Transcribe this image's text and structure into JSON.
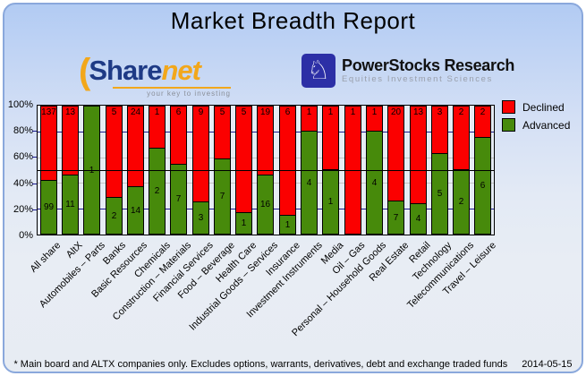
{
  "header": {
    "title": "Market Breadth Report"
  },
  "logos": {
    "sharenet": {
      "name_part1": "Share",
      "name_part2": "net",
      "paren_glyph": "(",
      "tagline": "your key to investing",
      "navy_color": "#1e3a85",
      "orange_color": "#f2a71b"
    },
    "powerstocks": {
      "title": "PowerStocks  Research",
      "subtitle": "Equities Investment Sciences",
      "knight_glyph": "♘",
      "badge_color": "#2c2fa6"
    }
  },
  "chart_data": {
    "type": "bar",
    "stacked": true,
    "title": "Market Breadth Report",
    "ylabel": "",
    "xlabel": "",
    "ylim": [
      0,
      100
    ],
    "y_tick_labels": [
      "100%",
      "80%",
      "60%",
      "40%",
      "20%",
      "0%"
    ],
    "reference_line_percent": 50,
    "legend_position": "top-right",
    "grid": "horizontal",
    "categories": [
      "All share",
      "AltX",
      "Automobiles – Parts",
      "Banks",
      "Basic Resources",
      "Chemicals",
      "Construction – Materials",
      "Financial Services",
      "Food – Beverage",
      "Health Care",
      "Industrial Goods – Services",
      "Insurance",
      "Investment Instruments",
      "Media",
      "Oil – Gas",
      "Personal – Household Goods",
      "Real Estate",
      "Retail",
      "Technology",
      "Telecommunications",
      "Travel – Leisure"
    ],
    "series": [
      {
        "name": "Declined",
        "color": "#fb0000",
        "values": [
          137,
          13,
          0,
          5,
          24,
          1,
          6,
          9,
          5,
          5,
          19,
          6,
          1,
          1,
          1,
          1,
          20,
          13,
          3,
          2,
          2
        ]
      },
      {
        "name": "Advanced",
        "color": "#478a0b",
        "values": [
          99,
          11,
          1,
          2,
          14,
          2,
          7,
          3,
          7,
          1,
          16,
          1,
          4,
          1,
          0,
          4,
          7,
          4,
          5,
          2,
          6
        ]
      }
    ],
    "bar_unit": "percent_of_total",
    "gridline_navy_color": "#1a1a8c",
    "gridline_gray_color": "#c4c4c4"
  },
  "footer": {
    "note": "* Main board and ALTX companies only. Excludes options, warrants, derivatives, debt and exchange traded funds",
    "date": "2014-05-15"
  }
}
